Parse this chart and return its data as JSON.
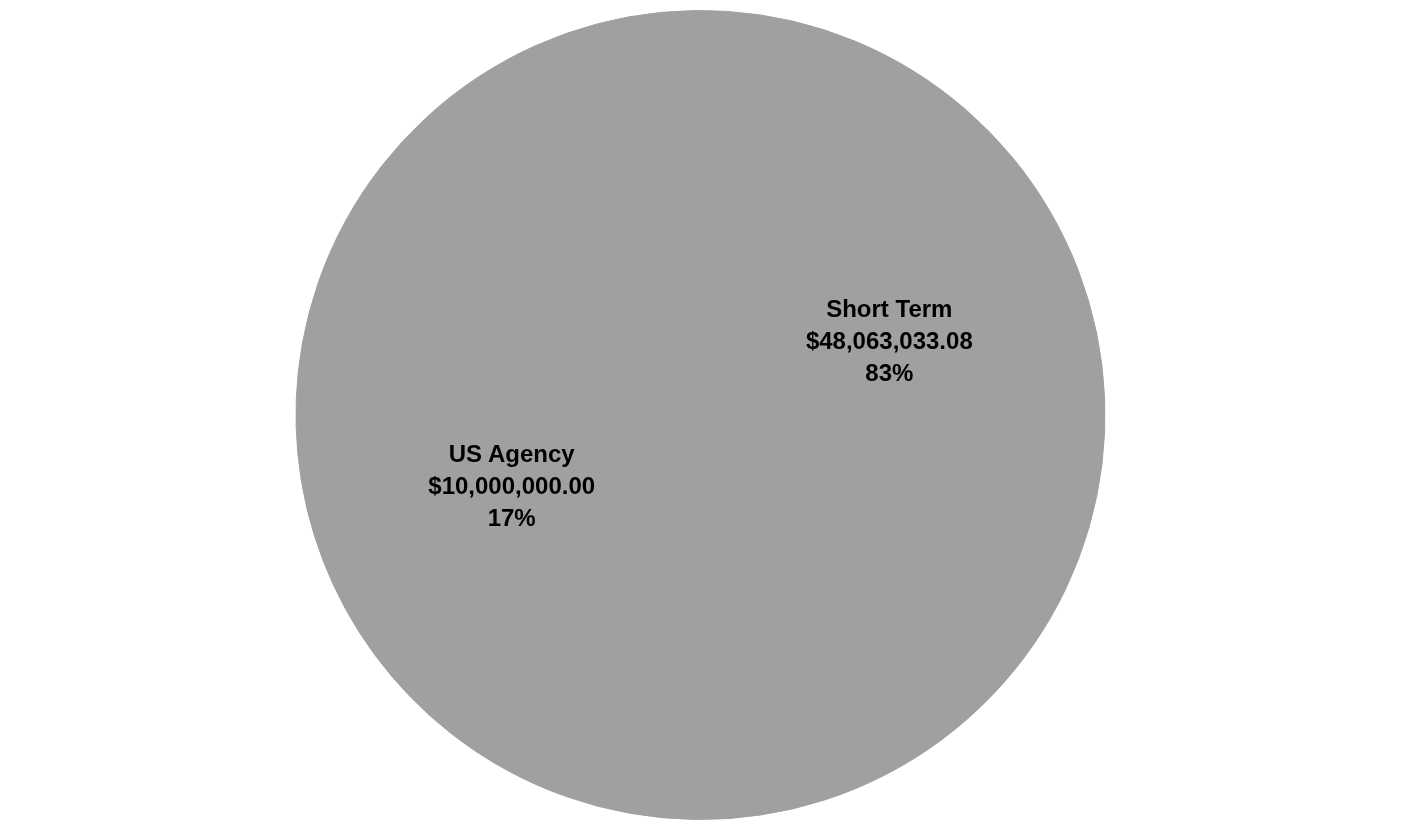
{
  "chart_data": {
    "type": "pie",
    "categories": [
      "Short Term",
      "US Agency"
    ],
    "values": [
      48063033.08,
      10000000.0
    ],
    "colors": [
      "#a0a0a0",
      "#a0a0a0"
    ],
    "value_labels": [
      "$48,063,033.08\n83%",
      "$10,000,000.00\n17%"
    ],
    "legend": false
  }
}
